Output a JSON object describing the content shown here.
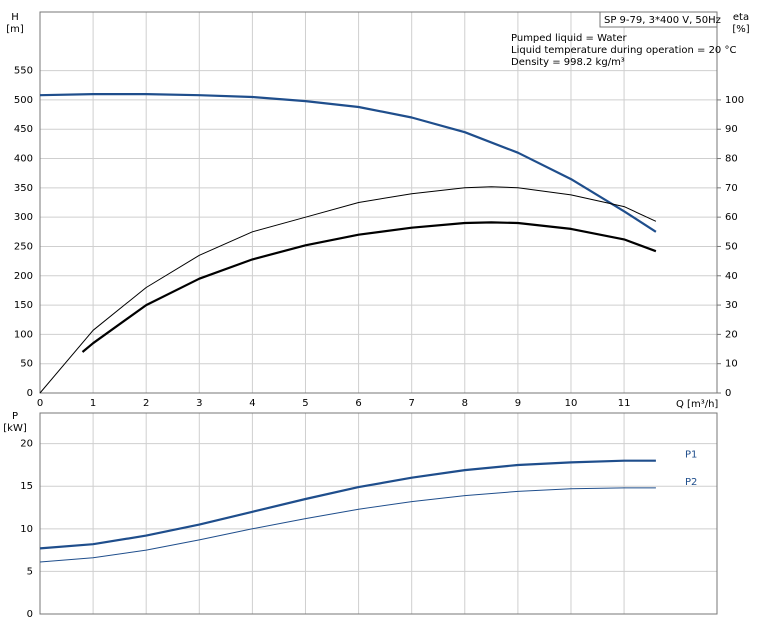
{
  "chart_data": [
    {
      "type": "line",
      "y_label": "H",
      "y_unit": "[m]",
      "y2_label": "eta",
      "y2_unit": "[%]",
      "x_label": "Q [m³/h]",
      "box_label": "SP 9-79, 3*400 V, 50Hz",
      "annotations": [
        "Pumped liquid = Water",
        "Liquid temperature during operation = 20 °C",
        "Density = 998.2 kg/m³"
      ],
      "xlim": [
        0,
        12.75
      ],
      "xticks": [
        0,
        1,
        2,
        3,
        4,
        5,
        6,
        7,
        8,
        9,
        10,
        11
      ],
      "ylim": [
        0,
        650
      ],
      "yticks": [
        0,
        50,
        100,
        150,
        200,
        250,
        300,
        350,
        400,
        450,
        500,
        550
      ],
      "y2lim": [
        0,
        130
      ],
      "y2ticks": [
        0,
        10,
        20,
        30,
        40,
        50,
        60,
        70,
        80,
        90,
        100
      ],
      "grid": true,
      "series": [
        {
          "color": "#1f4e8c",
          "width": 2.2,
          "x": [
            0,
            1,
            2,
            3,
            4,
            5,
            6,
            7,
            8,
            9,
            10,
            11,
            11.6
          ],
          "values": [
            508,
            510,
            510,
            508,
            505,
            498,
            488,
            470,
            445,
            410,
            365,
            310,
            275
          ]
        },
        {
          "color": "#000000",
          "width": 1,
          "axis": "y2",
          "x": [
            0,
            1,
            2,
            3,
            4,
            5,
            6,
            7,
            8,
            8.5,
            9,
            10,
            11,
            11.6
          ],
          "values": [
            0,
            21.4,
            36,
            47,
            55,
            60,
            65,
            68,
            70,
            70.4,
            70,
            67.6,
            63.6,
            58.6
          ]
        },
        {
          "color": "#000000",
          "width": 2.2,
          "axis": "y2",
          "x": [
            0.8,
            1,
            2,
            3,
            4,
            5,
            6,
            7,
            8,
            8.5,
            9,
            10,
            11,
            11.6
          ],
          "values": [
            14,
            17,
            30,
            39,
            45.6,
            50.4,
            54,
            56.4,
            58,
            58.2,
            58,
            56,
            52.4,
            48.4
          ]
        }
      ]
    },
    {
      "type": "line",
      "y_label": "P",
      "y_unit": "[kW]",
      "xlim": [
        0,
        12.75
      ],
      "ylim": [
        0,
        23.6
      ],
      "yticks": [
        0,
        5,
        10,
        15,
        20
      ],
      "grid": true,
      "series": [
        {
          "name": "P1",
          "color": "#1f4e8c",
          "width": 2.2,
          "x": [
            0,
            1,
            2,
            3,
            4,
            5,
            6,
            7,
            8,
            9,
            10,
            11,
            11.6
          ],
          "values": [
            7.7,
            8.2,
            9.2,
            10.5,
            12,
            13.5,
            14.9,
            16,
            16.9,
            17.5,
            17.8,
            18,
            18
          ]
        },
        {
          "name": "P2",
          "color": "#1f4e8c",
          "width": 1,
          "x": [
            0,
            1,
            2,
            3,
            4,
            5,
            6,
            7,
            8,
            9,
            10,
            11,
            11.6
          ],
          "values": [
            6.1,
            6.6,
            7.5,
            8.7,
            10,
            11.2,
            12.3,
            13.2,
            13.9,
            14.4,
            14.7,
            14.8,
            14.8
          ]
        }
      ]
    }
  ]
}
